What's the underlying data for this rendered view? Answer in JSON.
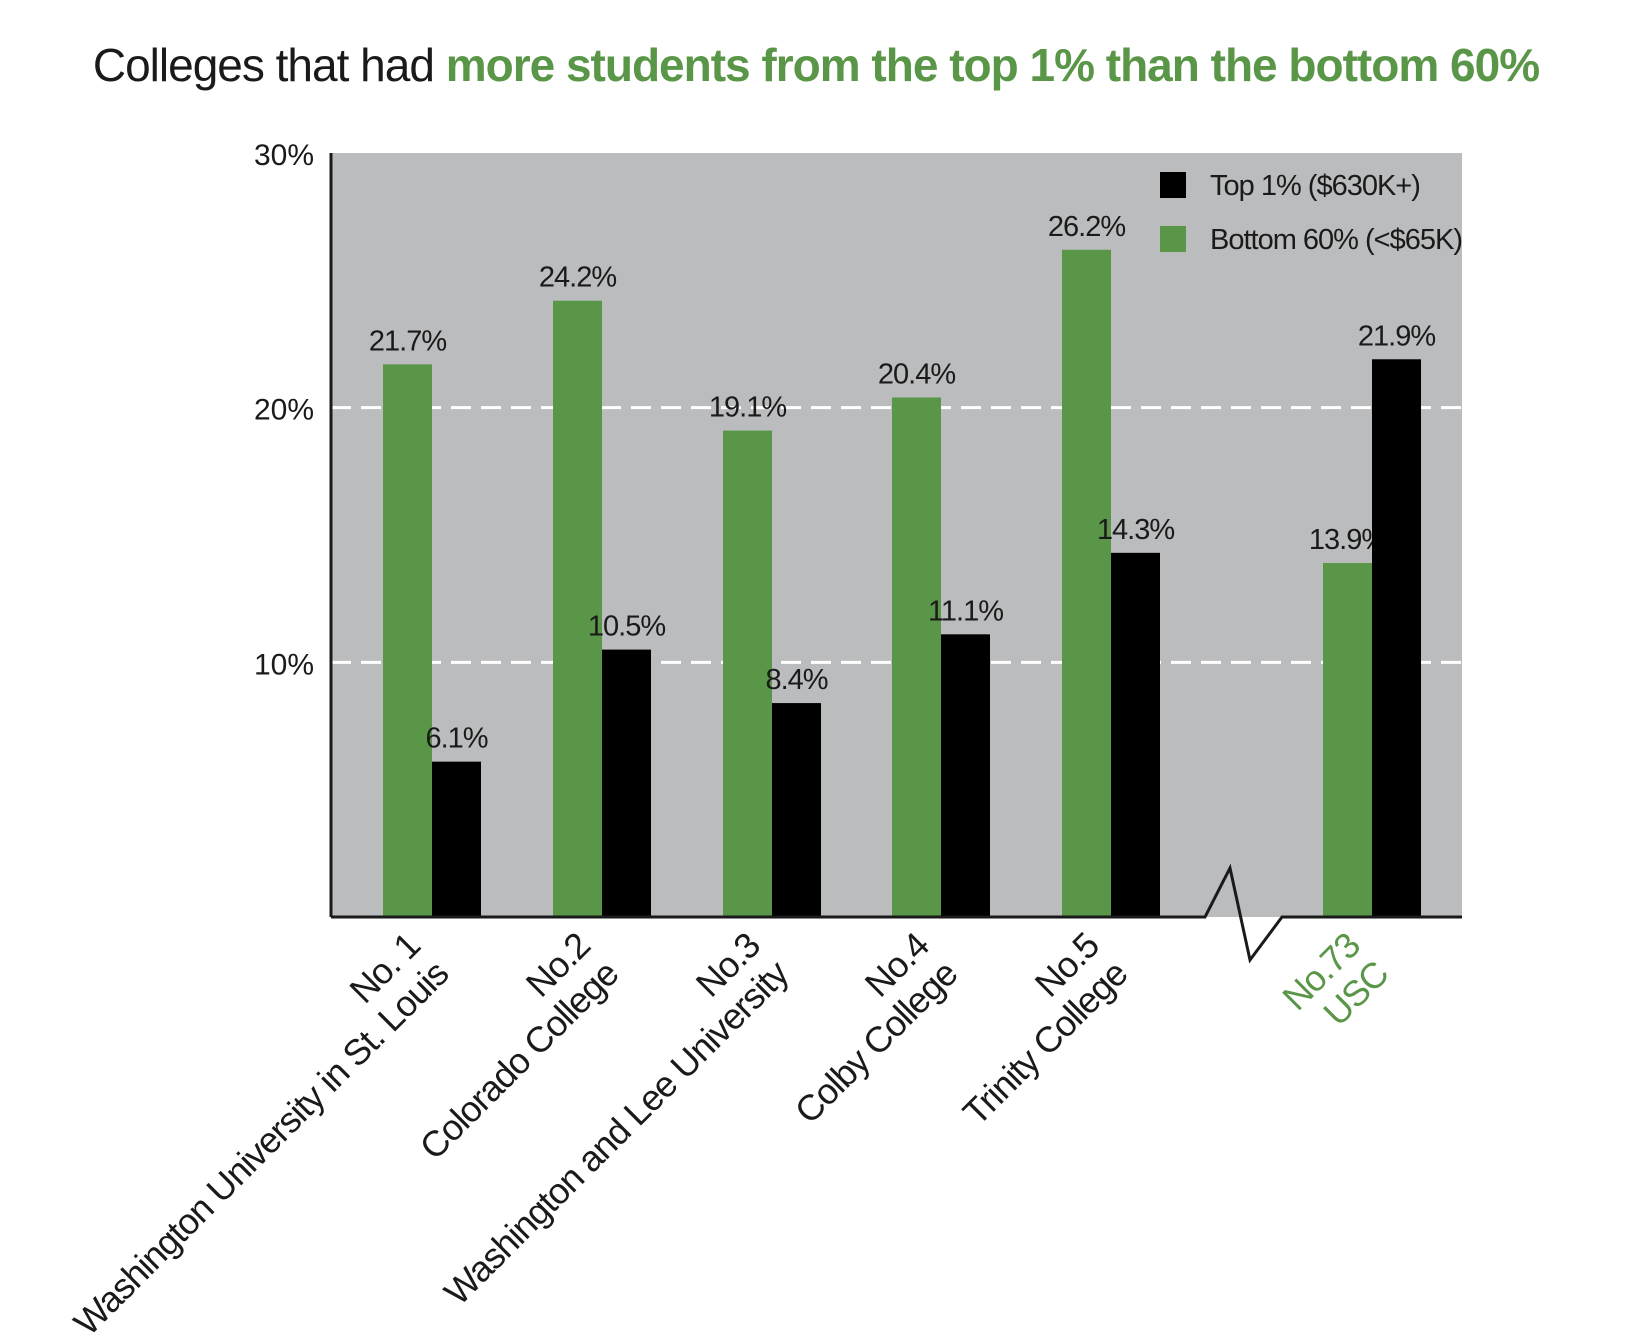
{
  "chart_data": {
    "type": "bar",
    "title_prefix": "Colleges that had ",
    "title_highlight": "more students from the top 1% than the bottom 60%",
    "ylim": [
      0,
      30
    ],
    "y_ticks": [
      {
        "value": 10,
        "label": "10%"
      },
      {
        "value": 20,
        "label": "20%"
      },
      {
        "value": 30,
        "label": "30%"
      }
    ],
    "gridlines": [
      10,
      20
    ],
    "grid_style": "dashed white",
    "axis_break_before_last": true,
    "legend_position": "top-right",
    "series": [
      {
        "name": "Top 1% ($630K+)",
        "color": "#000000"
      },
      {
        "name": "Bottom 60% (<$65K)",
        "color": "#5a9647"
      }
    ],
    "categories": [
      {
        "rank": "No. 1",
        "name": "Washington University in St. Louis",
        "bottom60": 21.7,
        "bottom60_label": "21.7%",
        "top1": 6.1,
        "top1_label": "6.1%",
        "highlight": false
      },
      {
        "rank": "No.2",
        "name": "Colorado College",
        "bottom60": 24.2,
        "bottom60_label": "24.2%",
        "top1": 10.5,
        "top1_label": "10.5%",
        "highlight": false
      },
      {
        "rank": "No.3",
        "name": "Washington and Lee University",
        "bottom60": 19.1,
        "bottom60_label": "19.1%",
        "top1": 8.4,
        "top1_label": "8.4%",
        "highlight": false
      },
      {
        "rank": "No.4",
        "name": "Colby College",
        "bottom60": 20.4,
        "bottom60_label": "20.4%",
        "top1": 11.1,
        "top1_label": "11.1%",
        "highlight": false
      },
      {
        "rank": "No.5",
        "name": "Trinity College",
        "bottom60": 26.2,
        "bottom60_label": "26.2%",
        "top1": 14.3,
        "top1_label": "14.3%",
        "highlight": false
      },
      {
        "rank": "No.73",
        "name": "USC",
        "bottom60": 13.9,
        "bottom60_label": "13.9%",
        "top1": 21.9,
        "top1_label": "21.9%",
        "highlight": true
      }
    ]
  },
  "colors": {
    "plot_background": "#bbbcbe",
    "green": "#5a9647",
    "black": "#000000",
    "text": "#1a1a1a"
  }
}
